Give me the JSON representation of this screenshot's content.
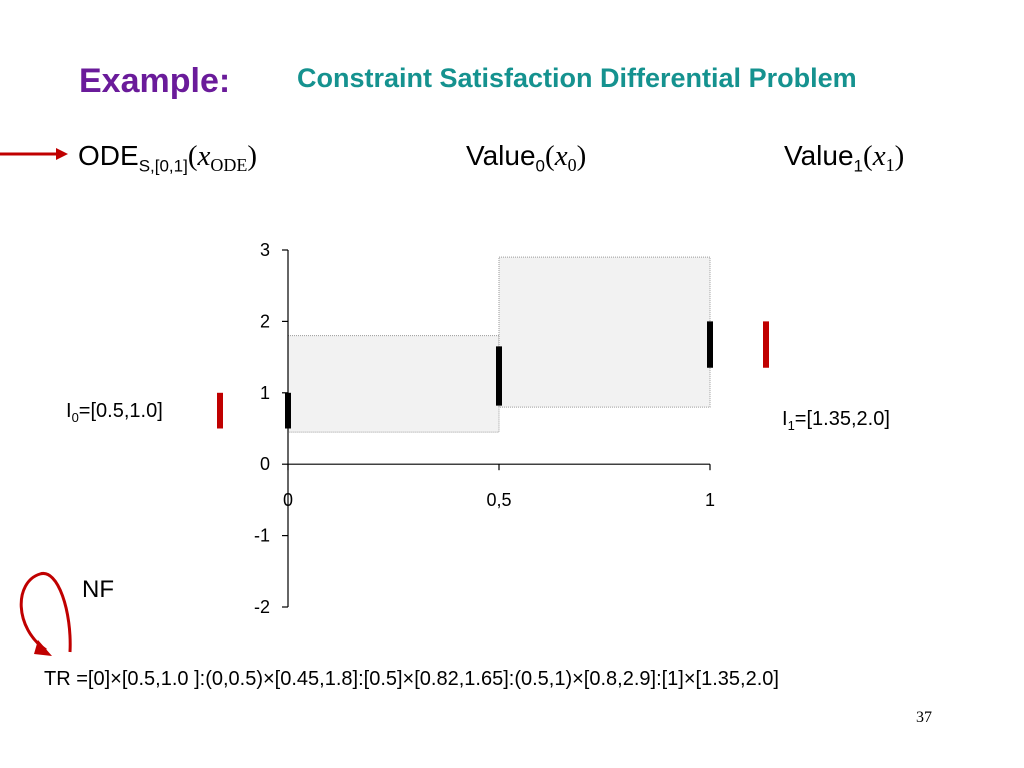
{
  "slide": {
    "heading": "Example:",
    "title": "Constraint Satisfaction Differential Problem",
    "page_number": "37",
    "heading_color": "#6a1b9a",
    "title_color": "#15928f"
  },
  "labels": {
    "ode": {
      "main": "ODE",
      "sub": "S,[0,1]",
      "open": "(",
      "var": "x",
      "var_sub": "ODE",
      "close": ")"
    },
    "value0": {
      "main": "Value",
      "sub": "0",
      "open": "(",
      "var": "x",
      "var_sub": "0",
      "close": ")"
    },
    "value1": {
      "main": "Value",
      "sub": "1",
      "open": "(",
      "var": "x",
      "var_sub": "1",
      "close": ")"
    },
    "i0": {
      "main": "I",
      "sub": "0",
      "rest": "=[0.5,1.0]"
    },
    "i1": {
      "main": "I",
      "sub": "1",
      "rest": "=[1.35,2.0]"
    },
    "nf": "NF",
    "tr": "TR =[0]×[0.5,1.0 ]:(0,0.5)×[0.45,1.8]:[0.5]×[0.82,1.65]:(0.5,1)×[0.8,2.9]:[1]×[1.35,2.0]"
  },
  "icons": [
    "arrow-right-icon",
    "loop-arrow-icon"
  ],
  "chart_data": {
    "type": "interval-plot",
    "x_ticks": [
      "0",
      "0,5",
      "1"
    ],
    "x_tick_values": [
      0,
      0.5,
      1
    ],
    "y_ticks": [
      "3",
      "2",
      "1",
      "0",
      "-1",
      "-2"
    ],
    "y_tick_values": [
      3,
      2,
      1,
      0,
      -1,
      -2
    ],
    "xlim": [
      0,
      1
    ],
    "ylim": [
      -2,
      3
    ],
    "grid": false,
    "boxes": [
      {
        "x": [
          0,
          0.5
        ],
        "y": [
          0.45,
          1.8
        ]
      },
      {
        "x": [
          0.5,
          1
        ],
        "y": [
          0.8,
          2.9
        ]
      }
    ],
    "point_intervals": [
      {
        "x": 0,
        "y": [
          0.5,
          1.0
        ]
      },
      {
        "x": 0.5,
        "y": [
          0.82,
          1.65
        ]
      },
      {
        "x": 1,
        "y": [
          1.35,
          2.0
        ]
      }
    ],
    "constraint_intervals": [
      {
        "name": "I0",
        "y": [
          0.5,
          1.0
        ],
        "color": "#c00000"
      },
      {
        "name": "I1",
        "y": [
          1.35,
          2.0
        ],
        "color": "#c00000"
      }
    ],
    "box_fill": "#f2f2f2",
    "interval_color": "#000000"
  }
}
